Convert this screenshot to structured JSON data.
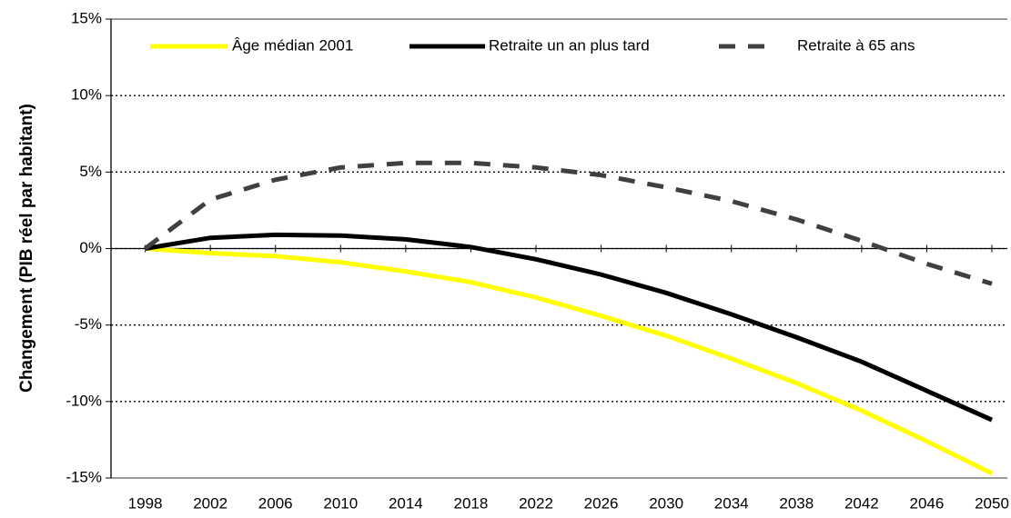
{
  "chart_data": {
    "type": "line",
    "y_label": "Changement (PIB réel par habitant)",
    "x": [
      1998,
      2002,
      2006,
      2010,
      2014,
      2018,
      2022,
      2026,
      2030,
      2034,
      2038,
      2042,
      2046,
      2050
    ],
    "series": [
      {
        "name": "Âge médian 2001",
        "color": "#ffff00",
        "dash": "solid",
        "values": [
          0,
          -0.3,
          -0.5,
          -0.9,
          -1.5,
          -2.2,
          -3.2,
          -4.4,
          -5.7,
          -7.2,
          -8.8,
          -10.6,
          -12.6,
          -14.7
        ]
      },
      {
        "name": "Retraite un an plus tard",
        "color": "#000000",
        "dash": "solid",
        "values": [
          0,
          0.7,
          0.9,
          0.85,
          0.6,
          0.1,
          -0.7,
          -1.7,
          -2.9,
          -4.3,
          -5.8,
          -7.4,
          -9.3,
          -11.2
        ]
      },
      {
        "name": "Retraite à 65 ans",
        "color": "#404040",
        "dash": "dashed",
        "values": [
          0,
          3.2,
          4.5,
          5.3,
          5.6,
          5.6,
          5.3,
          4.8,
          4.0,
          3.1,
          1.9,
          0.5,
          -1.0,
          -2.3
        ]
      }
    ],
    "xlim": [
      1995.9,
      2050.95
    ],
    "xticks": [
      1998,
      2002,
      2006,
      2010,
      2014,
      2018,
      2022,
      2026,
      2030,
      2034,
      2038,
      2042,
      2046,
      2050
    ],
    "ylim": [
      -15,
      15
    ],
    "yticks": [
      {
        "value": -15,
        "label": "-15%"
      },
      {
        "value": -10,
        "label": "-10%"
      },
      {
        "value": -5,
        "label": "-5%"
      },
      {
        "value": 0,
        "label": "0%"
      },
      {
        "value": 5,
        "label": "5%"
      },
      {
        "value": 10,
        "label": "10%"
      },
      {
        "value": 15,
        "label": "15%"
      }
    ],
    "grid": true,
    "legend": "top"
  }
}
